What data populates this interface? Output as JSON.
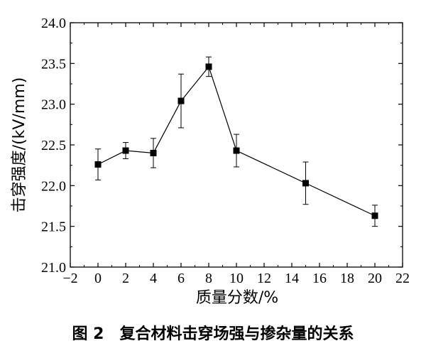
{
  "chart_data": {
    "type": "line",
    "title": "",
    "xlabel": "质量分数/%",
    "ylabel": "击穿强度/(kV/mm)",
    "xlim": [
      -2,
      22
    ],
    "ylim": [
      21.0,
      24.0
    ],
    "x_ticks": [
      "−2",
      "0",
      "2",
      "4",
      "6",
      "8",
      "10",
      "12",
      "14",
      "16",
      "18",
      "20",
      "22"
    ],
    "y_ticks": [
      "21.0",
      "21.5",
      "22.0",
      "22.5",
      "23.0",
      "23.5",
      "24.0"
    ],
    "grid": false,
    "legend": "none",
    "series": [
      {
        "x": [
          0,
          2,
          4,
          6,
          8,
          10,
          15,
          20
        ],
        "values": [
          22.26,
          22.43,
          22.4,
          23.04,
          23.46,
          22.43,
          22.03,
          21.63
        ],
        "error": [
          0.19,
          0.1,
          0.18,
          0.33,
          0.12,
          0.2,
          0.26,
          0.13
        ]
      }
    ]
  },
  "caption": {
    "figure_label": "图 2",
    "text": "复合材料击穿场强与掺杂量的关系"
  }
}
